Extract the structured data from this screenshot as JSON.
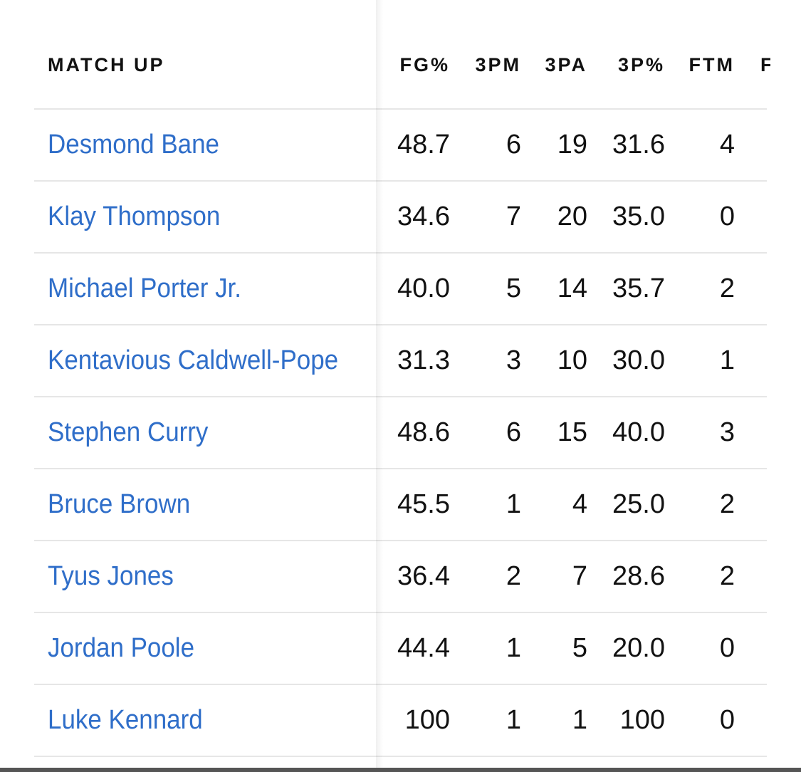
{
  "table": {
    "headers": {
      "matchup": "MATCH UP",
      "fg_pct": "FG%",
      "threepm": "3PM",
      "threepa": "3PA",
      "three_pct": "3P%",
      "ftm": "FTM",
      "cut": "F"
    },
    "rows": [
      {
        "player": "Desmond Bane",
        "fg_pct": "48.7",
        "threepm": "6",
        "threepa": "19",
        "three_pct": "31.6",
        "ftm": "4"
      },
      {
        "player": "Klay Thompson",
        "fg_pct": "34.6",
        "threepm": "7",
        "threepa": "20",
        "three_pct": "35.0",
        "ftm": "0"
      },
      {
        "player": "Michael Porter Jr.",
        "fg_pct": "40.0",
        "threepm": "5",
        "threepa": "14",
        "three_pct": "35.7",
        "ftm": "2"
      },
      {
        "player": "Kentavious Caldwell-Pope",
        "fg_pct": "31.3",
        "threepm": "3",
        "threepa": "10",
        "three_pct": "30.0",
        "ftm": "1"
      },
      {
        "player": "Stephen Curry",
        "fg_pct": "48.6",
        "threepm": "6",
        "threepa": "15",
        "three_pct": "40.0",
        "ftm": "3"
      },
      {
        "player": "Bruce Brown",
        "fg_pct": "45.5",
        "threepm": "1",
        "threepa": "4",
        "three_pct": "25.0",
        "ftm": "2"
      },
      {
        "player": "Tyus Jones",
        "fg_pct": "36.4",
        "threepm": "2",
        "threepa": "7",
        "three_pct": "28.6",
        "ftm": "2"
      },
      {
        "player": "Jordan Poole",
        "fg_pct": "44.4",
        "threepm": "1",
        "threepa": "5",
        "three_pct": "20.0",
        "ftm": "0"
      },
      {
        "player": "Luke Kennard",
        "fg_pct": "100",
        "threepm": "1",
        "threepa": "1",
        "three_pct": "100",
        "ftm": "0"
      }
    ]
  },
  "colors": {
    "player_link": "#2f6ec9",
    "text": "#111111",
    "rule": "#e6e6e6"
  }
}
